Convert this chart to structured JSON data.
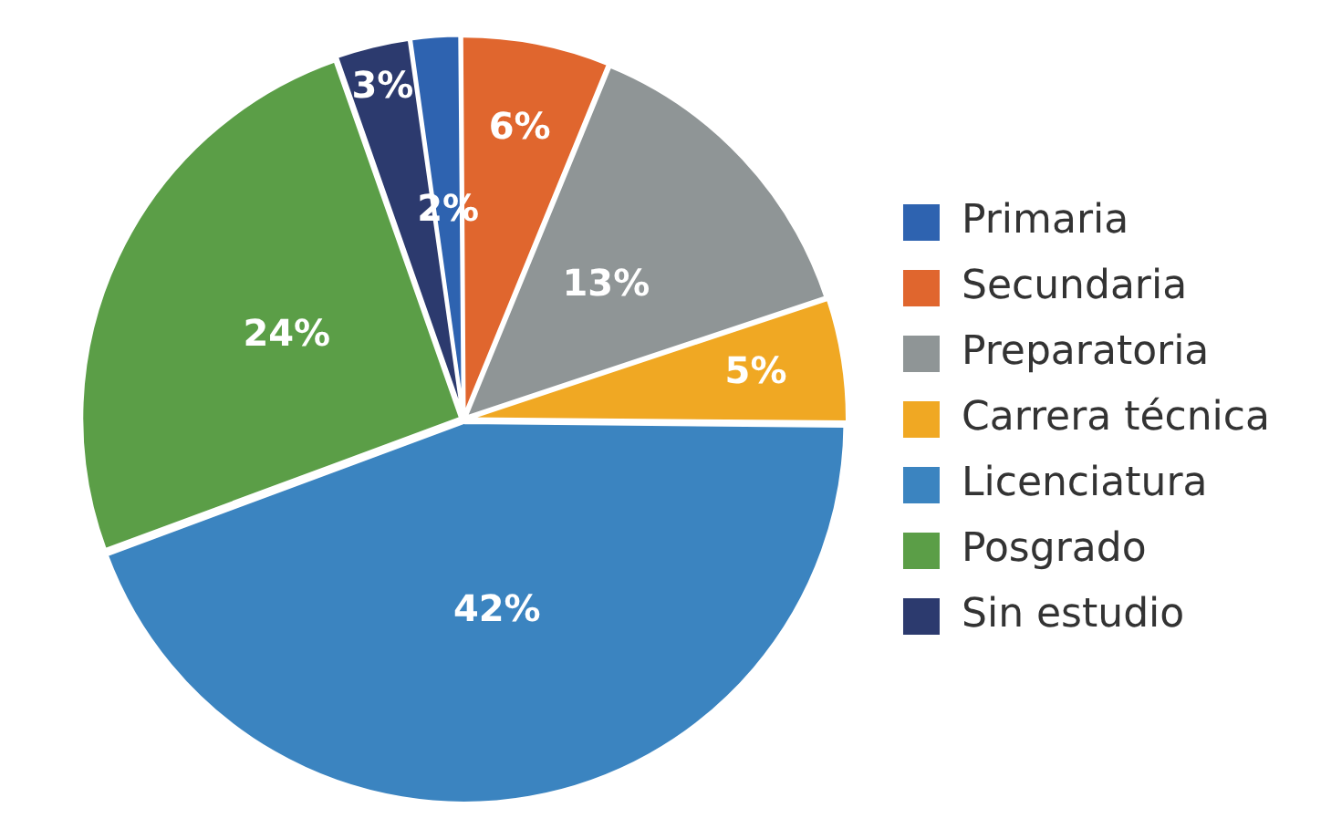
{
  "chart_data": {
    "type": "pie",
    "categories": [
      "Primaria",
      "Secundaria",
      "Preparatoria",
      "Carrera técnica",
      "Licenciatura",
      "Posgrado",
      "Sin estudio"
    ],
    "values": [
      2,
      6,
      13,
      5,
      42,
      24,
      3
    ],
    "value_labels": [
      "2%",
      "6%",
      "13%",
      "5%",
      "42%",
      "24%",
      "3%"
    ],
    "colors": [
      "#2e63b0",
      "#e0662e",
      "#8f9596",
      "#f0a823",
      "#3b84c0",
      "#5b9e47",
      "#2c3a6e"
    ],
    "legend": "right"
  }
}
